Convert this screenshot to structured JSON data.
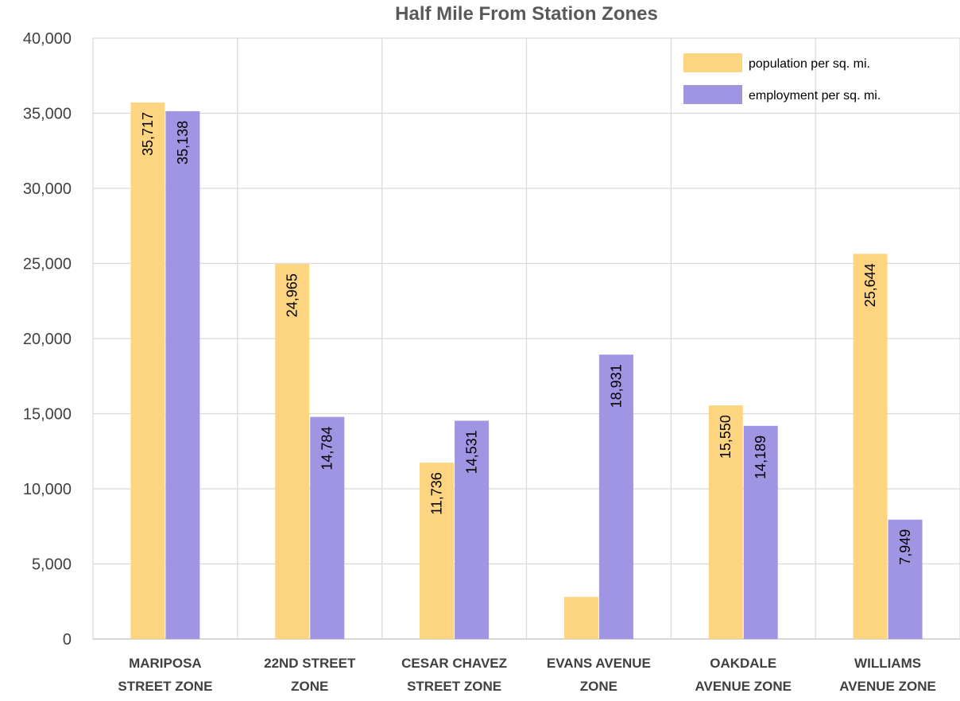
{
  "chart_data": {
    "type": "bar",
    "title": "Half Mile From Station Zones",
    "xlabel": "",
    "ylabel": "",
    "ylim": [
      0,
      40000
    ],
    "yticks": [
      "0",
      "5,000",
      "10,000",
      "15,000",
      "20,000",
      "25,000",
      "30,000",
      "35,000",
      "40,000"
    ],
    "categories": [
      [
        "MARIPOSA",
        "STREET ZONE"
      ],
      [
        "22ND STREET",
        "ZONE"
      ],
      [
        "CESAR CHAVEZ",
        "STREET ZONE"
      ],
      [
        "EVANS AVENUE",
        "ZONE"
      ],
      [
        "OAKDALE",
        "AVENUE ZONE"
      ],
      [
        "WILLIAMS",
        "AVENUE ZONE"
      ]
    ],
    "series": [
      {
        "name": "population per sq. mi.",
        "color": "#FDD480",
        "values": [
          35717,
          24965,
          11736,
          2800,
          15550,
          25644
        ],
        "labels": [
          "35,717",
          "24,965",
          "11,736",
          "",
          "15,550",
          "25,644"
        ]
      },
      {
        "name": "employment per sq. mi.",
        "color": "#A095E2",
        "values": [
          35138,
          14784,
          14531,
          18931,
          14189,
          7949
        ],
        "labels": [
          "35,138",
          "14,784",
          "14,531",
          "18,931",
          "14,189",
          "7,949"
        ]
      }
    ],
    "grid": true,
    "legend": "top-right"
  }
}
